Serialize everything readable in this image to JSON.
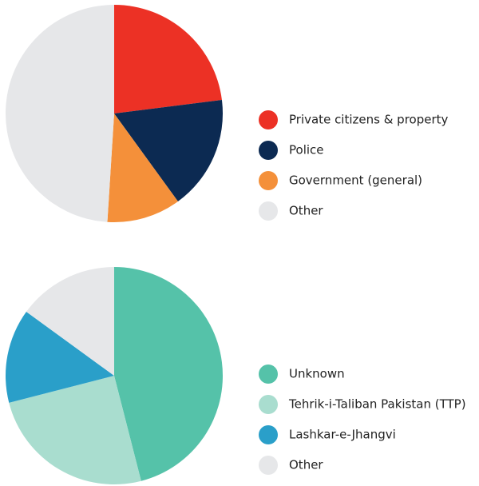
{
  "chart_data": [
    {
      "type": "pie",
      "categories": [
        "Private citizens & property",
        "Police",
        "Government (general)",
        "Other"
      ],
      "values": [
        23,
        17,
        11,
        49
      ],
      "colors": [
        "#ec3125",
        "#0c2a52",
        "#f4903a",
        "#e6e7e9"
      ]
    },
    {
      "type": "pie",
      "categories": [
        "Unknown",
        "Tehrik-i-Taliban Pakistan (TTP)",
        "Lashkar-e-Jhangvi",
        "Other"
      ],
      "values": [
        46,
        25,
        14,
        15
      ],
      "colors": [
        "#55c2a9",
        "#a9ddcf",
        "#2a9fc9",
        "#e6e7e9"
      ]
    }
  ]
}
